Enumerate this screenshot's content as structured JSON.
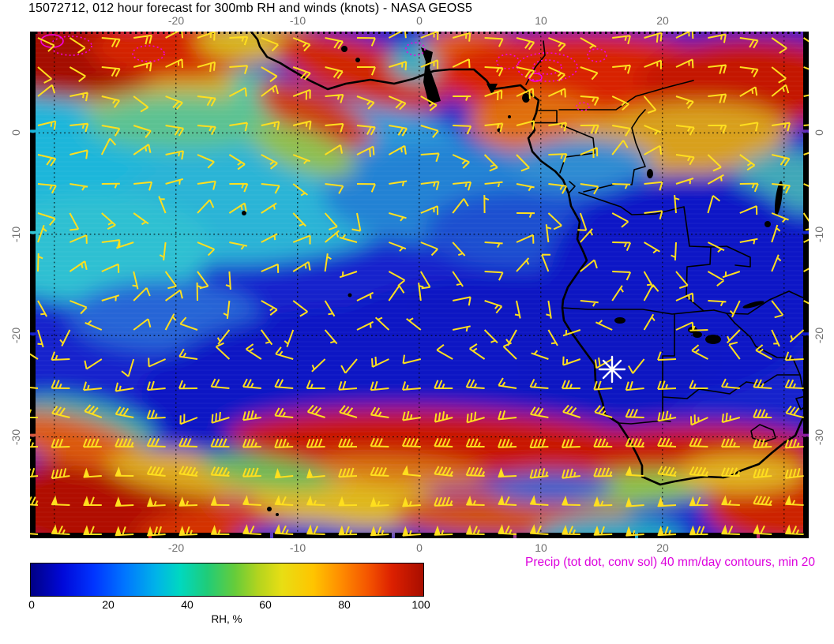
{
  "title": "15072712, 012 hour forecast for 300mb RH and winds (knots) - NASA GEOS5",
  "axes": {
    "lon_ticks": [
      "-20",
      "-10",
      "0",
      "10",
      "20"
    ],
    "lat_ticks": [
      "0",
      "-10",
      "-20",
      "-30"
    ],
    "lon_range": [
      -32,
      32
    ],
    "lat_range": [
      -40,
      10
    ],
    "grid_spacing_deg": 10,
    "grid_style": "dotted black"
  },
  "colorbar": {
    "label": "RH, %",
    "tick_labels": [
      "0",
      "20",
      "40",
      "60",
      "80",
      "100"
    ],
    "min": 0,
    "max": 100,
    "palette": [
      "#000085",
      "#0034ff",
      "#00b4e8",
      "#00d8c0",
      "#66cc3a",
      "#e8de14",
      "#ffc400",
      "#ff8c00",
      "#dc2000",
      "#a80e00"
    ]
  },
  "annotation": {
    "precip_note": "Precip (tot dot, conv sol) 40 mm/day contours, min 20",
    "precip_color": "#ff00f0"
  },
  "chart_data": {
    "type": "heatmap",
    "field": "300mb relative humidity (%)",
    "overlay": "wind barbs (knots)",
    "model": "NASA GEOS5",
    "init_time": "15072712",
    "forecast_hour": "012",
    "level_mb": 300,
    "lon_range": [
      -32,
      32
    ],
    "lat_range": [
      -40,
      10
    ],
    "colorbar_range": [
      0,
      100
    ],
    "features": [
      {
        "region": "ITCZ band ~4N-10N across Atlantic and Guinea coast",
        "rh_percent": "80-100"
      },
      {
        "region": "Nigeria / Cameroon / Gulf of Guinea north coast",
        "rh_percent": "70-100"
      },
      {
        "region": "Eastern tropical Atlantic 0-8S",
        "rh_percent": "40-60"
      },
      {
        "region": "Subtropical South Atlantic 10S-30S",
        "rh_percent": "0-20"
      },
      {
        "region": "Congo basin, Angola and Namibia interior",
        "rh_percent": "0-20"
      },
      {
        "region": "Midlatitude storm-track band 30S-38S",
        "rh_percent": "70-100"
      },
      {
        "region": "Upper-left (NW Atlantic corner of domain)",
        "rh_percent": "40-60 with 90-100 streaks"
      }
    ],
    "winds": [
      {
        "zone": "north of equator",
        "direction": "easterly",
        "speed_kt": "10-20"
      },
      {
        "zone": "5S-20S",
        "direction": "light and variable",
        "speed_kt": "5-15"
      },
      {
        "zone": "south of 25S",
        "direction": "westerly jet",
        "speed_kt": "30-60 (pennants)"
      }
    ],
    "wind_barb_color": "#ffdf1e",
    "precip_contours": {
      "interval_mm_day": 40,
      "min_mm_day": 20,
      "total_style": "dotted",
      "convective_style": "solid",
      "color": "#ff00f0",
      "locations": [
        "NW corner of domain",
        "Guinea coast",
        "Nigeria/Cameroon sector near 8-13E, 7-10N"
      ]
    },
    "marker": {
      "symbol": "white asterisk",
      "lon": 15,
      "lat": -23
    }
  }
}
